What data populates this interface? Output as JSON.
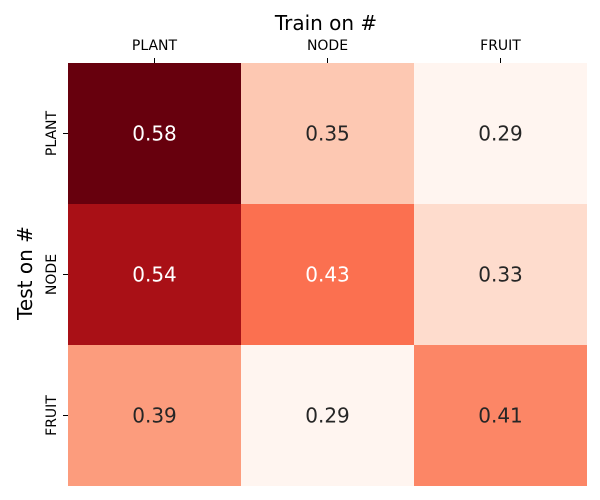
{
  "chart_data": {
    "type": "heatmap",
    "xlabel": "Train on #",
    "ylabel": "Test on #",
    "x_categories": [
      "PLANT",
      "NODE",
      "FRUIT"
    ],
    "y_categories": [
      "PLANT",
      "NODE",
      "FRUIT"
    ],
    "values": [
      [
        0.58,
        0.35,
        0.29
      ],
      [
        0.54,
        0.43,
        0.33
      ],
      [
        0.39,
        0.29,
        0.41
      ]
    ],
    "value_format": "0.00",
    "colormap": "Reds",
    "vmin": 0.29,
    "vmax": 0.58,
    "x_axis_position": "top",
    "colorbar": false
  },
  "colors": {
    "text_light": "#ffffff",
    "text_dark": "#262626"
  }
}
